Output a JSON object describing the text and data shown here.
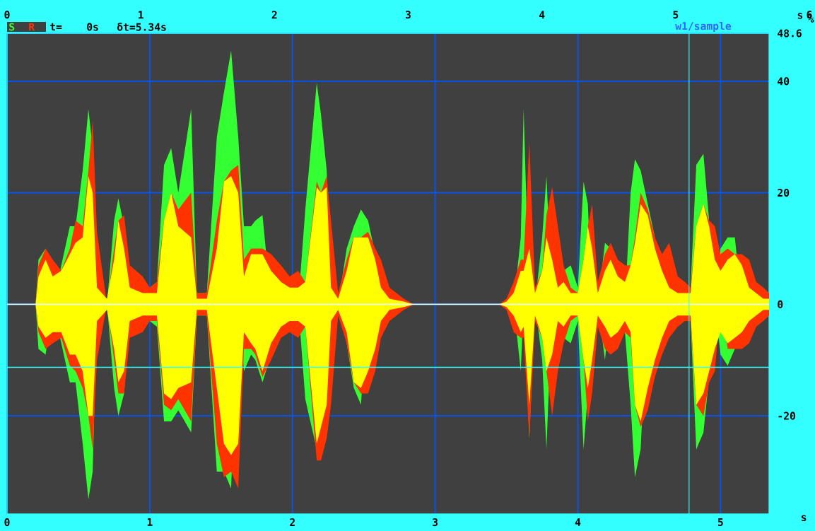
{
  "chart_data": {
    "type": "area",
    "x": [
      0,
      0.2,
      0.22,
      0.27,
      0.32,
      0.38,
      0.44,
      0.48,
      0.53,
      0.57,
      0.6,
      0.63,
      0.7,
      0.75,
      0.78,
      0.82,
      0.86,
      0.95,
      1.0,
      1.05,
      1.1,
      1.15,
      1.2,
      1.29,
      1.33,
      1.4,
      1.47,
      1.52,
      1.57,
      1.62,
      1.66,
      1.71,
      1.74,
      1.79,
      1.85,
      1.92,
      1.98,
      2.04,
      2.09,
      2.17,
      2.2,
      2.24,
      2.27,
      2.32,
      2.38,
      2.43,
      2.48,
      2.53,
      2.58,
      2.62,
      2.68,
      2.78,
      2.85,
      3.45,
      3.5,
      3.55,
      3.6,
      3.62,
      3.66,
      3.7,
      3.75,
      3.78,
      3.82,
      3.86,
      3.9,
      3.95,
      4.0,
      4.04,
      4.07,
      4.1,
      4.14,
      4.19,
      4.23,
      4.28,
      4.33,
      4.37,
      4.4,
      4.44,
      4.49,
      4.54,
      4.59,
      4.64,
      4.7,
      4.75,
      4.79,
      4.83,
      4.88,
      4.92,
      4.96,
      5.0,
      5.05,
      5.1,
      5.15,
      5.2,
      5.25,
      5.3,
      5.34
    ],
    "xlim": [
      0,
      5.34
    ],
    "xticks": [
      0,
      1,
      2,
      3,
      4,
      5
    ],
    "xlabel": "s",
    "x2lim": [
      0,
      6
    ],
    "x2ticks": [
      0,
      1,
      2,
      3,
      4,
      5,
      6
    ],
    "x2label": "s",
    "ylim": [
      -37.6,
      48.6
    ],
    "yticks": [
      -20,
      0,
      20,
      40,
      48.6
    ],
    "ylabel": "%",
    "grid": true,
    "legend": "top left",
    "annotations": [
      "t=",
      "0s",
      "δt=5.34s",
      "w1/sample"
    ],
    "ref_lines": [
      {
        "axis": "y",
        "value": 0,
        "color": "#e0ffff"
      },
      {
        "axis": "y",
        "value": -11.3,
        "color": "#33ffff"
      },
      {
        "axis": "x",
        "value": 4.78,
        "color": "#33ffff"
      }
    ],
    "series": [
      {
        "name": "S",
        "color": "#33ff33",
        "values": [
          0,
          0,
          8,
          10,
          null,
          7,
          14,
          14,
          24,
          35,
          28,
          null,
          null,
          15,
          19,
          14,
          null,
          null,
          3,
          4,
          25,
          28,
          20,
          35,
          2,
          2,
          30,
          38,
          45.5,
          30,
          14,
          14,
          15,
          16,
          null,
          null,
          null,
          null,
          17,
          39.7,
          34,
          24,
          null,
          null,
          10,
          14,
          17,
          15,
          9,
          null,
          null,
          0.5,
          0,
          0,
          0.5,
          null,
          12,
          35,
          null,
          null,
          12,
          23,
          null,
          null,
          6,
          7,
          3,
          22,
          18,
          null,
          null,
          11,
          10,
          null,
          null,
          20,
          26,
          24,
          18,
          12,
          null,
          null,
          null,
          null,
          3,
          25,
          27,
          15,
          null,
          10,
          12,
          12,
          null,
          null,
          null,
          null,
          1
        ]
      },
      {
        "color": "#33ff33",
        "values": [
          0,
          0,
          -8,
          -9,
          null,
          -7,
          -14,
          -14,
          -25,
          -35,
          -30,
          null,
          null,
          -15,
          -20,
          -16,
          null,
          null,
          -3,
          -4,
          -21,
          -21,
          -19,
          -23,
          -2,
          -2,
          -30,
          -30,
          -33,
          null,
          -12,
          -9,
          -10,
          -14,
          -9,
          null,
          null,
          null,
          -17,
          -26,
          null,
          null,
          null,
          null,
          -7,
          -15,
          -18,
          null,
          null,
          null,
          null,
          -0.5,
          0,
          0,
          -0.5,
          null,
          -12,
          null,
          -24,
          null,
          -10,
          -26,
          null,
          null,
          -6,
          -7,
          -3,
          -26,
          -16,
          null,
          null,
          -10,
          null,
          -7,
          -5,
          -18,
          -31,
          -26,
          null,
          null,
          null,
          null,
          null,
          null,
          -3,
          -26,
          -23,
          -13,
          null,
          -9,
          -11,
          -8,
          null,
          null,
          null,
          null,
          null
        ]
      },
      {
        "name": "R",
        "color": "#ff3300",
        "values": [
          0,
          0,
          7,
          10,
          8,
          6,
          10,
          15,
          14,
          24,
          33,
          13,
          null,
          10,
          15,
          16,
          7,
          5,
          3,
          4,
          15,
          20,
          17,
          20,
          2,
          2,
          15,
          22,
          24,
          25,
          8,
          10,
          10,
          10,
          9,
          7,
          5,
          6,
          4,
          22,
          20,
          23,
          15,
          2,
          8,
          12,
          12,
          13,
          10,
          8,
          3,
          1,
          0,
          0,
          1,
          4,
          8,
          8,
          29,
          3,
          6,
          16,
          21,
          14,
          7,
          3,
          2,
          8,
          14,
          18,
          4,
          9,
          11,
          8,
          7,
          7,
          12,
          20,
          17,
          12,
          9,
          11,
          5,
          4,
          3,
          14,
          18,
          15,
          14,
          9,
          10,
          9,
          9,
          8,
          4,
          3,
          2
        ]
      },
      {
        "color": "#ff3300",
        "values": [
          0,
          0,
          -5,
          -8,
          -7,
          -6,
          -11,
          -12,
          -15,
          -20,
          -26,
          -10,
          null,
          -10,
          -16,
          -16,
          -6,
          -5,
          -3,
          -3,
          -18,
          -19,
          -17,
          -21,
          -2,
          -2,
          -25,
          -31,
          -30,
          -33,
          -8,
          -8,
          -9,
          -13,
          -10,
          -6,
          -5,
          -6,
          -4,
          -28,
          -28,
          -24,
          -18,
          -2,
          -7,
          -14,
          -16,
          -16,
          -12,
          -6,
          -3,
          -1,
          0,
          0,
          -1,
          -5,
          -6,
          -6,
          -24,
          -3,
          -6,
          -12,
          -20,
          -12,
          -7,
          -3,
          -2,
          -10,
          -21,
          -16,
          -4,
          -8,
          -9,
          -8,
          -5,
          -6,
          -18,
          -22,
          -19,
          -13,
          -9,
          -6,
          -4,
          -3,
          -3,
          -18,
          -20,
          -14,
          -12,
          null,
          -8,
          -8,
          -8,
          -7,
          -4,
          -3,
          -2
        ]
      },
      {
        "color": "#ffff00",
        "values": [
          0,
          0,
          5,
          8,
          5,
          6,
          9,
          11,
          12,
          23,
          20,
          3,
          1,
          8,
          15,
          10,
          3,
          2,
          2,
          2,
          15,
          20,
          14,
          12,
          1,
          1,
          10,
          22,
          23,
          20,
          5,
          9,
          9,
          9,
          6,
          4,
          3,
          3,
          4,
          21,
          20,
          21,
          3,
          1,
          6,
          12,
          12,
          12,
          8,
          3,
          1,
          0.5,
          0,
          0,
          0.5,
          2,
          6,
          6,
          10,
          2,
          6,
          12,
          8,
          3,
          4,
          2,
          2,
          8,
          14,
          10,
          2,
          6,
          8,
          5,
          4,
          7,
          11,
          18,
          16,
          10,
          6,
          3,
          2,
          2,
          2,
          14,
          18,
          14,
          8,
          6,
          8,
          9,
          7,
          3,
          2,
          1,
          1
        ]
      },
      {
        "color": "#ffff00",
        "values": [
          0,
          0,
          -4,
          -6,
          -5,
          -5,
          -9,
          -9,
          -12,
          -20,
          -20,
          -3,
          -1,
          -8,
          -14,
          -12,
          -3,
          -2,
          -2,
          -2,
          -16,
          -17,
          -15,
          -14,
          -1,
          -1,
          -15,
          -25,
          -27,
          -25,
          -5,
          -7,
          -8,
          -12,
          -7,
          -4,
          -3,
          -3,
          -4,
          -25,
          -22,
          -18,
          -3,
          -1,
          -5,
          -14,
          -15,
          -12,
          -8,
          -3,
          -1,
          -0.5,
          0,
          0,
          -0.5,
          -2,
          -5,
          -4,
          -18,
          -2,
          -6,
          -12,
          -9,
          -3,
          -4,
          -2,
          -2,
          -10,
          -15,
          -10,
          -2,
          -4,
          -6,
          -5,
          -3,
          -5,
          -18,
          -21,
          -15,
          -10,
          -6,
          -3,
          -2,
          -2,
          -2,
          -18,
          -16,
          -12,
          -8,
          -5,
          -7,
          -6,
          -5,
          -3,
          -2,
          -1,
          -1
        ]
      }
    ]
  }
}
